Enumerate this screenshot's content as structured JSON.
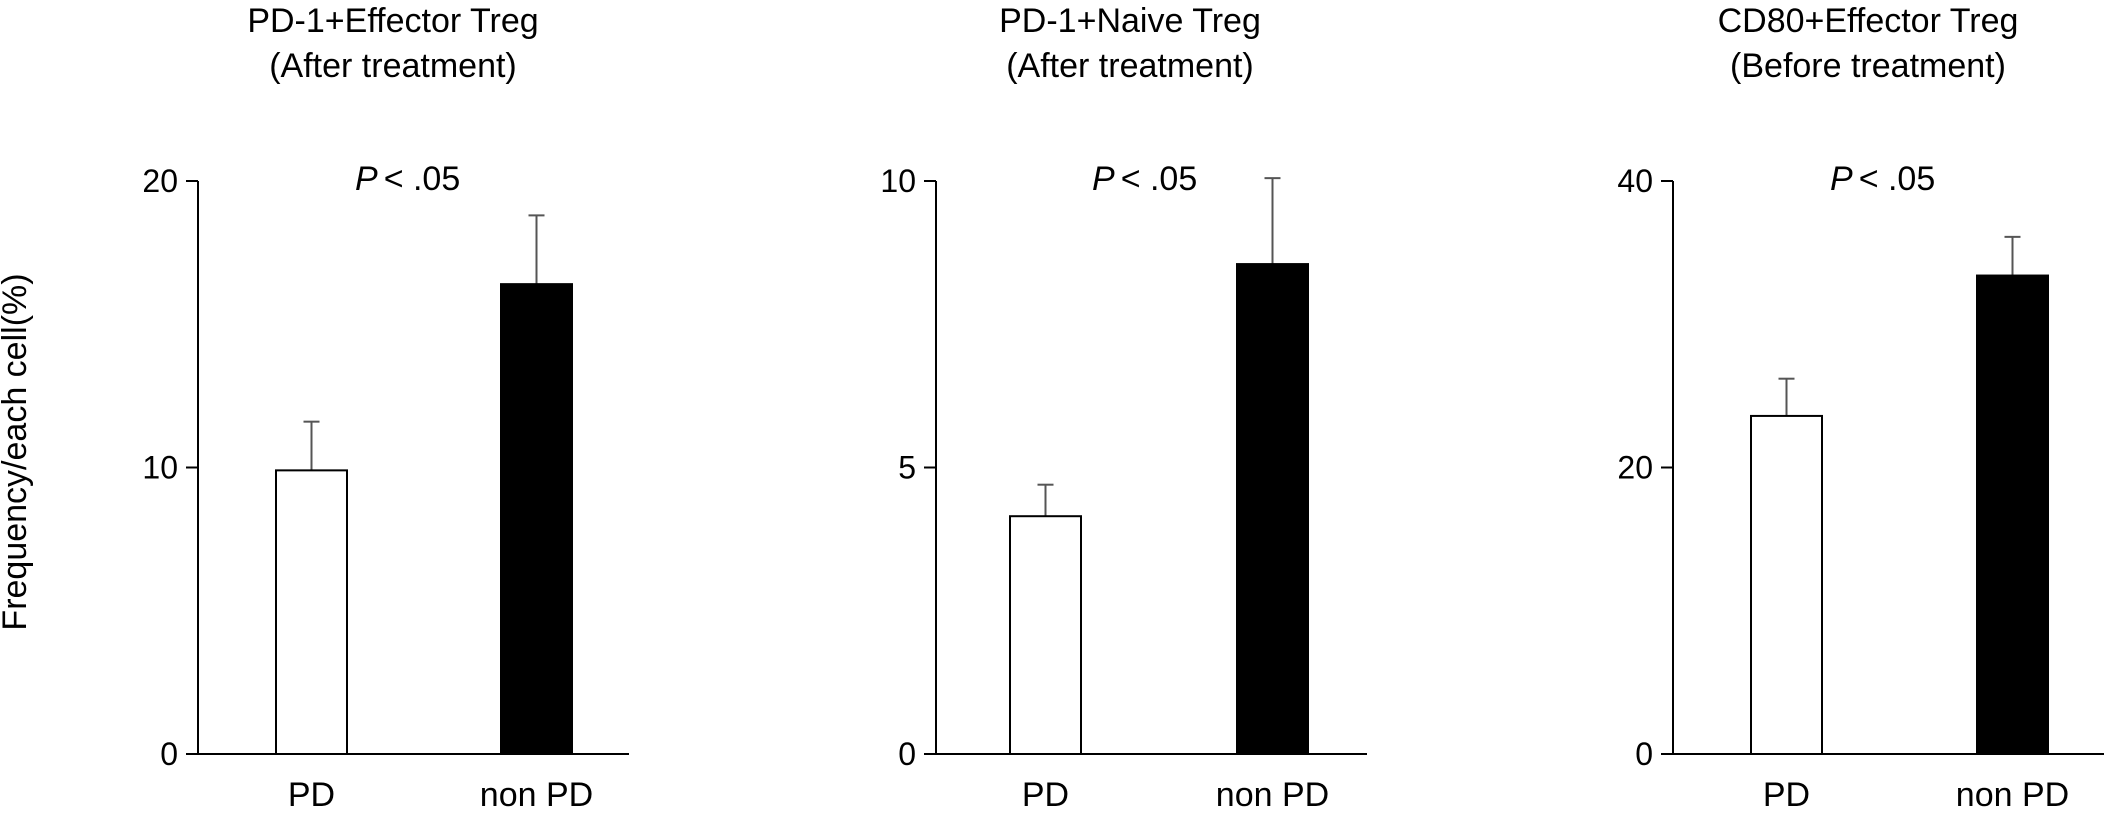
{
  "figure": {
    "ylabel": "Frequency/each cell(%)"
  },
  "chart_data": [
    {
      "type": "bar",
      "title": "PD-1+Effector Treg",
      "subtitle": "(After treatment)",
      "categories": [
        "PD",
        "non PD"
      ],
      "values": [
        9.9,
        16.4
      ],
      "errors": [
        1.7,
        2.4
      ],
      "bar_colors": [
        "#ffffff",
        "#000000"
      ],
      "ylim": [
        0,
        20
      ],
      "yticks": [
        0,
        10,
        20
      ],
      "annotation": {
        "p_symbol": "P",
        "p_text": "< .05"
      },
      "xlabel": "",
      "grid": false
    },
    {
      "type": "bar",
      "title": "PD-1+Naive Treg",
      "subtitle": "(After treatment)",
      "categories": [
        "PD",
        "non PD"
      ],
      "values": [
        4.15,
        8.55
      ],
      "errors": [
        0.55,
        1.5
      ],
      "bar_colors": [
        "#ffffff",
        "#000000"
      ],
      "ylim": [
        0,
        10
      ],
      "yticks": [
        0,
        5,
        10
      ],
      "annotation": {
        "p_symbol": "P",
        "p_text": "< .05"
      },
      "xlabel": "",
      "grid": false
    },
    {
      "type": "bar",
      "title": "CD80+Effector Treg",
      "subtitle": "(Before treatment)",
      "categories": [
        "PD",
        "non PD"
      ],
      "values": [
        23.6,
        33.4
      ],
      "errors": [
        2.6,
        2.7
      ],
      "bar_colors": [
        "#ffffff",
        "#000000"
      ],
      "ylim": [
        0,
        40
      ],
      "yticks": [
        0,
        20,
        40
      ],
      "annotation": {
        "p_symbol": "P",
        "p_text": "< .05"
      },
      "xlabel": "",
      "grid": false
    }
  ]
}
